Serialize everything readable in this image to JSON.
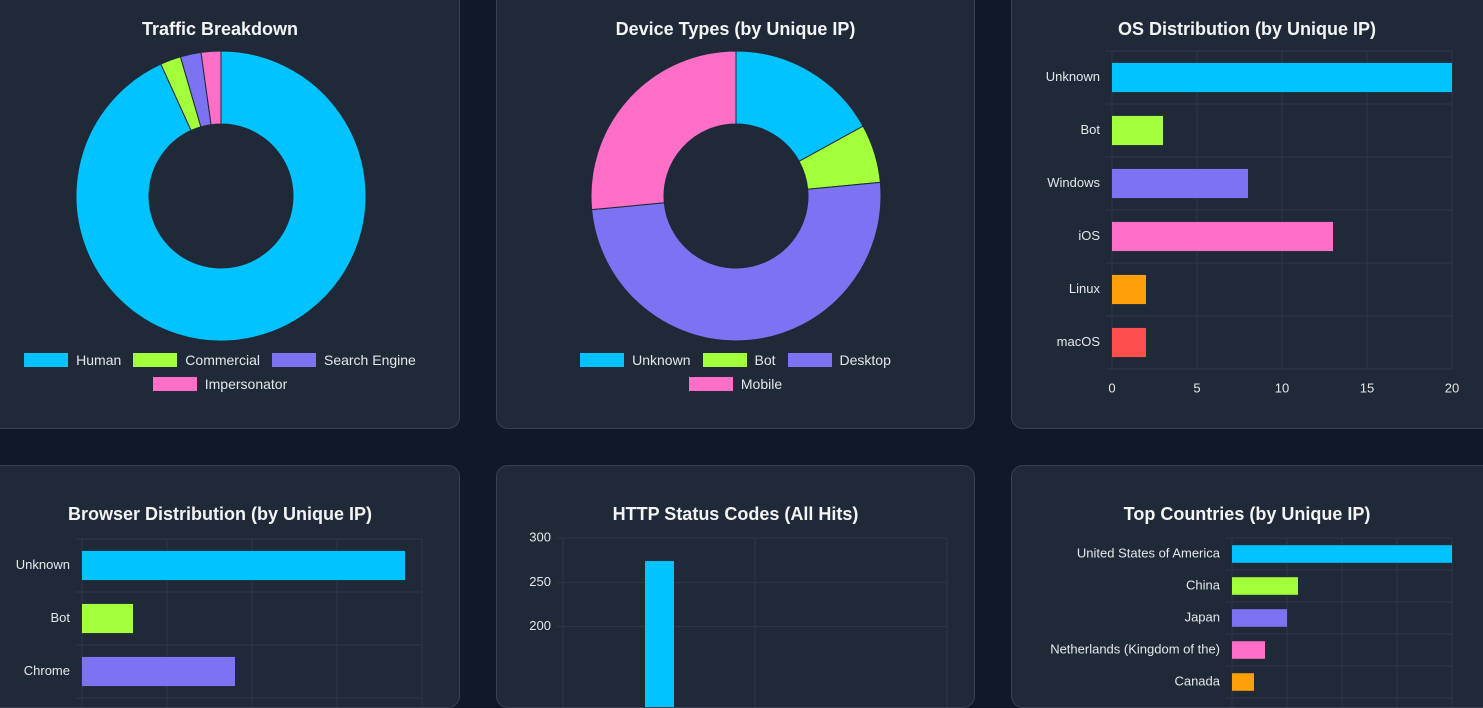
{
  "colors": {
    "page_bg": "#111827",
    "card_bg": "#1f2937",
    "grid": "#2d3748",
    "tick": "#e5e7eb",
    "palette": [
      "#00c3ff",
      "#a3ff3a",
      "#7b73f2",
      "#ff6ec7",
      "#ff9f0a",
      "#ff4d4d"
    ]
  },
  "charts": [
    {
      "title": "Traffic Breakdown",
      "chart_data": {
        "type": "pie",
        "style": "doughnut",
        "labels": [
          "Human",
          "Commercial",
          "Search Engine",
          "Impersonator"
        ],
        "values": [
          93,
          2.3,
          2.3,
          2.2
        ],
        "legend": "bottom"
      }
    },
    {
      "title": "Device Types (by Unique IP)",
      "chart_data": {
        "type": "pie",
        "style": "doughnut",
        "labels": [
          "Unknown",
          "Bot",
          "Desktop",
          "Mobile"
        ],
        "values": [
          17,
          6.5,
          50,
          26.5
        ],
        "legend": "bottom"
      }
    },
    {
      "title": "OS Distribution (by Unique IP)",
      "chart_data": {
        "type": "bar",
        "orientation": "horizontal",
        "categories": [
          "Unknown",
          "Bot",
          "Windows",
          "iOS",
          "Linux",
          "macOS"
        ],
        "values": [
          20,
          3,
          8,
          13,
          2,
          2
        ],
        "xlim": [
          0,
          20
        ],
        "xticks": [
          0,
          5,
          10,
          15,
          20
        ],
        "grid": true
      }
    },
    {
      "title": "Browser Distribution (by Unique IP)",
      "chart_data": {
        "type": "bar",
        "orientation": "horizontal",
        "categories": [
          "Unknown",
          "Bot",
          "Chrome"
        ],
        "values": [
          19,
          3,
          9
        ],
        "xlim": [
          0,
          20
        ],
        "grid": true
      }
    },
    {
      "title": "HTTP Status Codes (All Hits)",
      "chart_data": {
        "type": "bar",
        "orientation": "vertical",
        "values": [
          274
        ],
        "ylim": [
          0,
          300
        ],
        "yticks": [
          200,
          250,
          300
        ],
        "grid": true
      }
    },
    {
      "title": "Top Countries (by Unique IP)",
      "chart_data": {
        "type": "bar",
        "orientation": "horizontal",
        "categories": [
          "United States of America",
          "China",
          "Japan",
          "Netherlands (Kingdom of the)",
          "Canada"
        ],
        "values": [
          20,
          6,
          5,
          3,
          2
        ],
        "xlim": [
          0,
          20
        ],
        "grid": true
      }
    }
  ]
}
